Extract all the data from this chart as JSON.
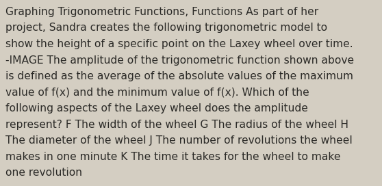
{
  "background_color": "#d4cec2",
  "lines": [
    "Graphing Trigonometric Functions, Functions As part of her",
    "project, Sandra creates the following trigonometric model to",
    "show the height of a specific point on the Laxey wheel over time.",
    "-IMAGE The amplitude of the trigonometric function shown above",
    "is defined as the average of the absolute values of the maximum",
    "value of f(x) and the minimum value of f(x). Which of the",
    "following aspects of the Laxey wheel does the amplitude",
    "represent? F The width of the wheel G The radius of the wheel H",
    "The diameter of the wheel J The number of revolutions the wheel",
    "makes in one minute K The time it takes for the wheel to make",
    "one revolution"
  ],
  "text_color": "#2b2a27",
  "font_size": 11.2,
  "fig_width": 5.58,
  "fig_height": 2.72,
  "dpi": 100
}
